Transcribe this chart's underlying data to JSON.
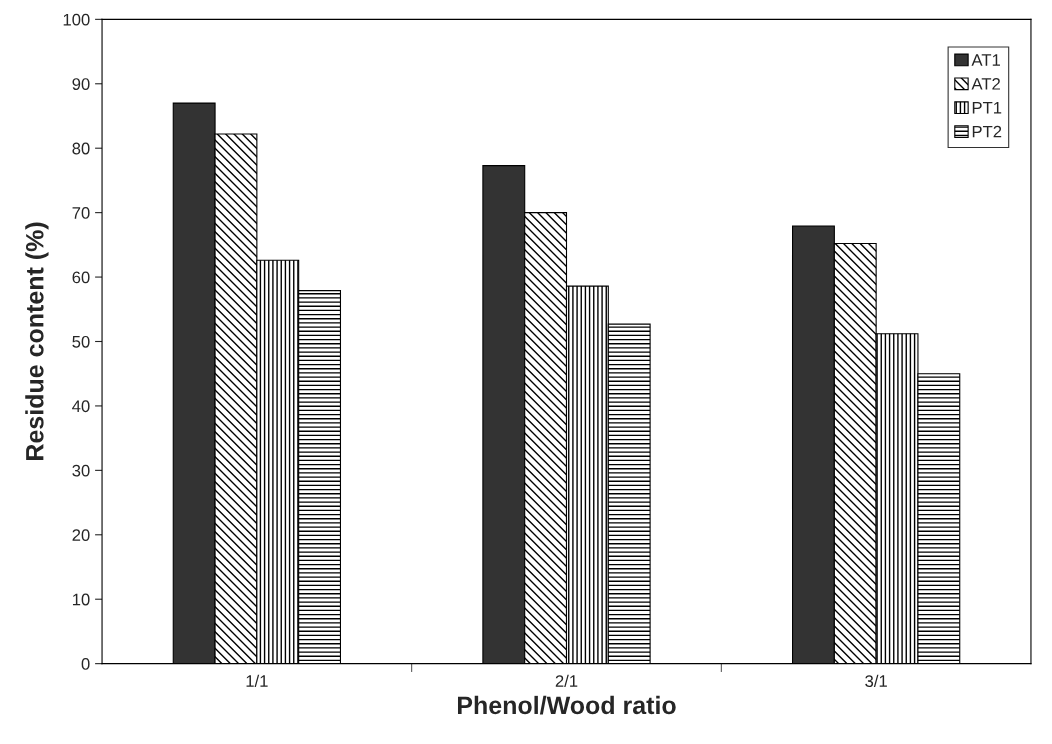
{
  "chart_data": {
    "type": "bar",
    "xlabel": "Phenol/Wood ratio",
    "ylabel": "Residue content (%)",
    "categories": [
      "1/1",
      "2/1",
      "3/1"
    ],
    "series": [
      {
        "name": "AT1",
        "color": "#333333",
        "values": [
          87.0,
          77.3,
          67.9
        ]
      },
      {
        "name": "AT2",
        "color": "#000000",
        "values": [
          82.2,
          70.0,
          65.2
        ]
      },
      {
        "name": "PT1",
        "color": "#000000",
        "values": [
          62.6,
          58.6,
          51.2
        ]
      },
      {
        "name": "PT2",
        "color": "#000000",
        "values": [
          57.9,
          52.7,
          45.0
        ]
      }
    ],
    "ylim": [
      0,
      100
    ],
    "yticks": [
      0,
      10,
      20,
      30,
      40,
      50,
      60,
      70,
      80,
      90,
      100
    ],
    "grid": false,
    "legend": "top right"
  }
}
